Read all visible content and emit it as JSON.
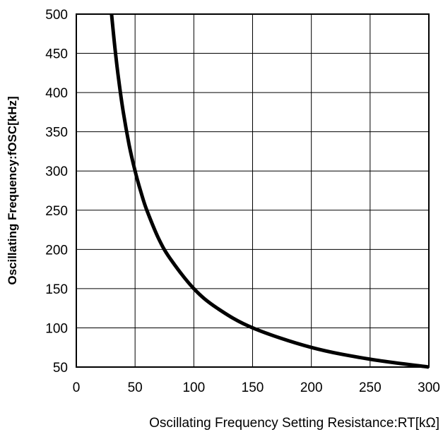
{
  "chart_data": {
    "type": "line",
    "title": "",
    "xlabel": "Oscillating Frequency Setting Resistance:RT[kΩ]",
    "ylabel": "Oscillating Frequency:fOSC[kHz]",
    "xlim": [
      0,
      300
    ],
    "ylim": [
      50,
      500
    ],
    "xticks": [
      "0",
      "50",
      "100",
      "150",
      "200",
      "250",
      "300"
    ],
    "yticks": [
      "50",
      "100",
      "150",
      "200",
      "250",
      "300",
      "350",
      "400",
      "450",
      "500"
    ],
    "grid": true,
    "series": [
      {
        "color": "#000000",
        "x": [
          30,
          33,
          36,
          40,
          45,
          50,
          55,
          60,
          70,
          80,
          100,
          120,
          150,
          200,
          250,
          300
        ],
        "y": [
          500,
          455,
          417,
          375,
          333,
          300,
          273,
          250,
          214,
          188,
          150,
          125,
          100,
          75,
          60,
          50
        ]
      }
    ]
  }
}
